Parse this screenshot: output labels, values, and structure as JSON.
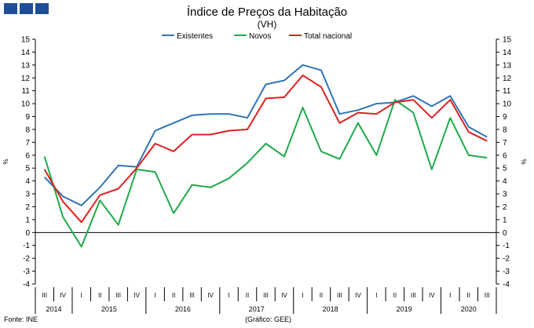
{
  "header": {
    "logo_colors": [
      "#1f4e97",
      "#1f4e97",
      "#1f4e97"
    ]
  },
  "chart_data": {
    "type": "line",
    "title": "Índice de Preços da Habitação",
    "subtitle": "(VH)",
    "ylabel_left": "%",
    "ylabel_right": "%",
    "ylim": [
      -4,
      15
    ],
    "yticks": [
      15,
      14,
      13,
      12,
      11,
      10,
      9,
      8,
      7,
      6,
      5,
      4,
      3,
      2,
      1,
      0,
      -1,
      -2,
      -3,
      -4
    ],
    "grid": false,
    "legend_position": "top-center",
    "quarters": [
      "III",
      "IV",
      "I",
      "II",
      "III",
      "IV",
      "I",
      "II",
      "III",
      "IV",
      "I",
      "II",
      "III",
      "IV",
      "I",
      "II",
      "III",
      "IV",
      "I",
      "II",
      "III",
      "IV",
      "I",
      "II",
      "III"
    ],
    "years": [
      {
        "label": "2014",
        "span": 2
      },
      {
        "label": "2015",
        "span": 4
      },
      {
        "label": "2016",
        "span": 4
      },
      {
        "label": "2017",
        "span": 4
      },
      {
        "label": "2018",
        "span": 4
      },
      {
        "label": "2019",
        "span": 4
      },
      {
        "label": "2020",
        "span": 3
      }
    ],
    "series": [
      {
        "name": "Existentes",
        "color": "#2e75b6",
        "values": [
          4.3,
          2.8,
          2.1,
          3.5,
          5.2,
          5.1,
          7.9,
          8.5,
          9.1,
          9.2,
          9.2,
          8.9,
          11.5,
          11.8,
          13.0,
          12.6,
          9.2,
          9.5,
          10.0,
          10.1,
          10.6,
          9.8,
          10.6,
          8.2,
          7.4
        ]
      },
      {
        "name": "Novos",
        "color": "#1faa4b",
        "values": [
          5.9,
          1.2,
          -1.1,
          2.5,
          0.6,
          4.9,
          4.7,
          1.5,
          3.7,
          3.5,
          4.2,
          5.4,
          6.9,
          5.9,
          9.7,
          6.3,
          5.7,
          8.5,
          6.0,
          10.3,
          9.3,
          4.9,
          8.9,
          6.0,
          5.8
        ]
      },
      {
        "name": "Total nacional",
        "color": "#e02020",
        "values": [
          4.9,
          2.4,
          0.8,
          2.9,
          3.4,
          5.0,
          6.9,
          6.3,
          7.6,
          7.6,
          7.9,
          8.0,
          10.4,
          10.5,
          12.2,
          11.3,
          8.5,
          9.3,
          9.2,
          10.1,
          10.3,
          8.9,
          10.3,
          7.8,
          7.1
        ]
      }
    ]
  },
  "footer": {
    "source": "Fonte: INE",
    "credit": "(Gráfico: GEE)"
  }
}
